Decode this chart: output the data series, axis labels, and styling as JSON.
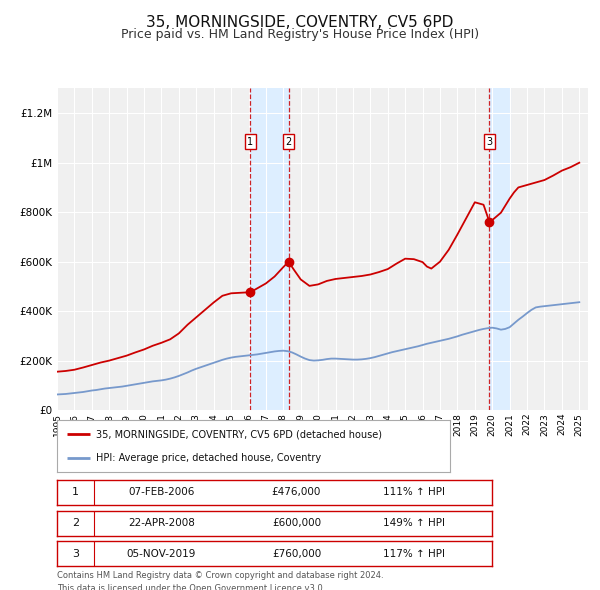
{
  "title": "35, MORNINGSIDE, COVENTRY, CV5 6PD",
  "subtitle": "Price paid vs. HM Land Registry's House Price Index (HPI)",
  "title_fontsize": 11,
  "subtitle_fontsize": 9,
  "background_color": "#ffffff",
  "plot_bg_color": "#f0f0f0",
  "grid_color": "#ffffff",
  "ylim": [
    0,
    1300000
  ],
  "yticks": [
    0,
    200000,
    400000,
    600000,
    800000,
    1000000,
    1200000
  ],
  "ytick_labels": [
    "£0",
    "£200K",
    "£400K",
    "£600K",
    "£800K",
    "£1M",
    "£1.2M"
  ],
  "xlim_start": 1995.0,
  "xlim_end": 2025.5,
  "xticks": [
    1995,
    1996,
    1997,
    1998,
    1999,
    2000,
    2001,
    2002,
    2003,
    2004,
    2005,
    2006,
    2007,
    2008,
    2009,
    2010,
    2011,
    2012,
    2013,
    2014,
    2015,
    2016,
    2017,
    2018,
    2019,
    2020,
    2021,
    2022,
    2023,
    2024,
    2025
  ],
  "red_line_color": "#cc0000",
  "blue_line_color": "#7799cc",
  "sale_marker_color": "#cc0000",
  "sale_marker_size": 6,
  "vertical_band_color": "#ddeeff",
  "dashed_line_color": "#cc0000",
  "legend_label_red": "35, MORNINGSIDE, COVENTRY, CV5 6PD (detached house)",
  "legend_label_blue": "HPI: Average price, detached house, Coventry",
  "sales": [
    {
      "num": 1,
      "date_x": 2006.1,
      "price": 476000,
      "date_str": "07-FEB-2006",
      "pct": "111%",
      "direction": "↑"
    },
    {
      "num": 2,
      "date_x": 2008.3,
      "price": 600000,
      "date_str": "22-APR-2008",
      "pct": "149%",
      "direction": "↑"
    },
    {
      "num": 3,
      "date_x": 2019.84,
      "price": 760000,
      "date_str": "05-NOV-2019",
      "pct": "117%",
      "direction": "↑"
    }
  ],
  "footer_line1": "Contains HM Land Registry data © Crown copyright and database right 2024.",
  "footer_line2": "This data is licensed under the Open Government Licence v3.0.",
  "hpi_data": {
    "years": [
      1995.0,
      1995.25,
      1995.5,
      1995.75,
      1996.0,
      1996.25,
      1996.5,
      1996.75,
      1997.0,
      1997.25,
      1997.5,
      1997.75,
      1998.0,
      1998.25,
      1998.5,
      1998.75,
      1999.0,
      1999.25,
      1999.5,
      1999.75,
      2000.0,
      2000.25,
      2000.5,
      2000.75,
      2001.0,
      2001.25,
      2001.5,
      2001.75,
      2002.0,
      2002.25,
      2002.5,
      2002.75,
      2003.0,
      2003.25,
      2003.5,
      2003.75,
      2004.0,
      2004.25,
      2004.5,
      2004.75,
      2005.0,
      2005.25,
      2005.5,
      2005.75,
      2006.0,
      2006.25,
      2006.5,
      2006.75,
      2007.0,
      2007.25,
      2007.5,
      2007.75,
      2008.0,
      2008.25,
      2008.5,
      2008.75,
      2009.0,
      2009.25,
      2009.5,
      2009.75,
      2010.0,
      2010.25,
      2010.5,
      2010.75,
      2011.0,
      2011.25,
      2011.5,
      2011.75,
      2012.0,
      2012.25,
      2012.5,
      2012.75,
      2013.0,
      2013.25,
      2013.5,
      2013.75,
      2014.0,
      2014.25,
      2014.5,
      2014.75,
      2015.0,
      2015.25,
      2015.5,
      2015.75,
      2016.0,
      2016.25,
      2016.5,
      2016.75,
      2017.0,
      2017.25,
      2017.5,
      2017.75,
      2018.0,
      2018.25,
      2018.5,
      2018.75,
      2019.0,
      2019.25,
      2019.5,
      2019.75,
      2020.0,
      2020.25,
      2020.5,
      2020.75,
      2021.0,
      2021.25,
      2021.5,
      2021.75,
      2022.0,
      2022.25,
      2022.5,
      2022.75,
      2023.0,
      2023.25,
      2023.5,
      2023.75,
      2024.0,
      2024.25,
      2024.5,
      2024.75,
      2025.0
    ],
    "values": [
      63000,
      64000,
      65000,
      67000,
      69000,
      71000,
      73000,
      76000,
      79000,
      81000,
      84000,
      87000,
      89000,
      91000,
      93000,
      95000,
      98000,
      101000,
      104000,
      107000,
      110000,
      113000,
      116000,
      118000,
      120000,
      123000,
      127000,
      132000,
      138000,
      145000,
      152000,
      160000,
      167000,
      173000,
      179000,
      185000,
      191000,
      197000,
      203000,
      208000,
      212000,
      215000,
      217000,
      219000,
      221000,
      223000,
      225000,
      228000,
      231000,
      234000,
      237000,
      239000,
      240000,
      238000,
      233000,
      225000,
      216000,
      208000,
      202000,
      200000,
      201000,
      203000,
      206000,
      208000,
      208000,
      207000,
      206000,
      205000,
      204000,
      204000,
      205000,
      207000,
      210000,
      214000,
      219000,
      224000,
      229000,
      234000,
      238000,
      242000,
      246000,
      250000,
      254000,
      258000,
      263000,
      268000,
      272000,
      276000,
      280000,
      284000,
      288000,
      293000,
      298000,
      304000,
      309000,
      314000,
      319000,
      324000,
      328000,
      331000,
      333000,
      330000,
      325000,
      328000,
      335000,
      350000,
      365000,
      378000,
      392000,
      405000,
      415000,
      418000,
      420000,
      422000,
      424000,
      426000,
      428000,
      430000,
      432000,
      434000,
      436000
    ]
  },
  "red_data": {
    "years": [
      1995.0,
      1995.5,
      1996.0,
      1996.5,
      1997.0,
      1997.5,
      1998.0,
      1998.5,
      1999.0,
      1999.5,
      2000.0,
      2000.5,
      2001.0,
      2001.5,
      2002.0,
      2002.5,
      2003.0,
      2003.5,
      2004.0,
      2004.5,
      2005.0,
      2005.5,
      2006.0,
      2006.1,
      2006.5,
      2007.0,
      2007.5,
      2008.0,
      2008.3,
      2008.6,
      2009.0,
      2009.5,
      2010.0,
      2010.5,
      2011.0,
      2011.5,
      2012.0,
      2012.5,
      2013.0,
      2013.5,
      2014.0,
      2014.5,
      2015.0,
      2015.5,
      2016.0,
      2016.25,
      2016.5,
      2017.0,
      2017.5,
      2018.0,
      2018.5,
      2019.0,
      2019.5,
      2019.84,
      2020.0,
      2020.5,
      2021.0,
      2021.25,
      2021.5,
      2022.0,
      2022.5,
      2023.0,
      2023.5,
      2024.0,
      2024.5,
      2025.0
    ],
    "values": [
      155000,
      158000,
      163000,
      172000,
      182000,
      192000,
      200000,
      210000,
      220000,
      233000,
      245000,
      260000,
      272000,
      286000,
      310000,
      345000,
      375000,
      405000,
      435000,
      462000,
      472000,
      474000,
      476000,
      476000,
      492000,
      512000,
      540000,
      578000,
      600000,
      568000,
      528000,
      502000,
      508000,
      522000,
      530000,
      534000,
      538000,
      542000,
      548000,
      558000,
      570000,
      592000,
      612000,
      610000,
      598000,
      580000,
      572000,
      600000,
      648000,
      710000,
      775000,
      840000,
      830000,
      760000,
      768000,
      798000,
      855000,
      880000,
      900000,
      910000,
      920000,
      930000,
      948000,
      968000,
      982000,
      1000000
    ]
  }
}
